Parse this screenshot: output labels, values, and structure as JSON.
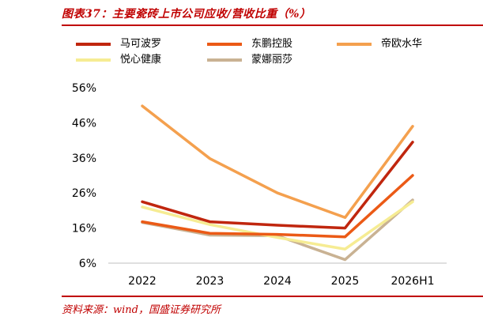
{
  "figure": {
    "title": "图表37：主要瓷砖上市公司应收/营收比重（%）",
    "source": "资料来源：wind，国盛证券研究所"
  },
  "chart_data": {
    "type": "line",
    "title": "图表37：主要瓷砖上市公司应收/营收比重（%）",
    "categories": [
      "2022",
      "2023",
      "2024",
      "2025",
      "2026H1"
    ],
    "y_ticks": [
      "56%",
      "46%",
      "36%",
      "26%",
      "16%",
      "6%"
    ],
    "ylim": [
      6,
      56
    ],
    "grid": false,
    "legend_position": "top",
    "series": [
      {
        "name": "马可波罗",
        "color": "#c0260e",
        "values": [
          23.5,
          17.8,
          16.8,
          16.0,
          40.5
        ]
      },
      {
        "name": "东鹏控股",
        "color": "#eb5a16",
        "values": [
          17.8,
          14.5,
          14.2,
          13.5,
          31.0
        ]
      },
      {
        "name": "帝欧水华",
        "color": "#f4a04e",
        "values": [
          50.8,
          35.8,
          26.0,
          19.0,
          45.0
        ]
      },
      {
        "name": "悦心健康",
        "color": "#f6ec93",
        "values": [
          22.0,
          17.0,
          13.3,
          10.0,
          23.5
        ]
      },
      {
        "name": "蒙娜丽莎",
        "color": "#c9b293",
        "values": [
          17.6,
          14.0,
          13.8,
          7.0,
          24.0
        ]
      }
    ]
  }
}
